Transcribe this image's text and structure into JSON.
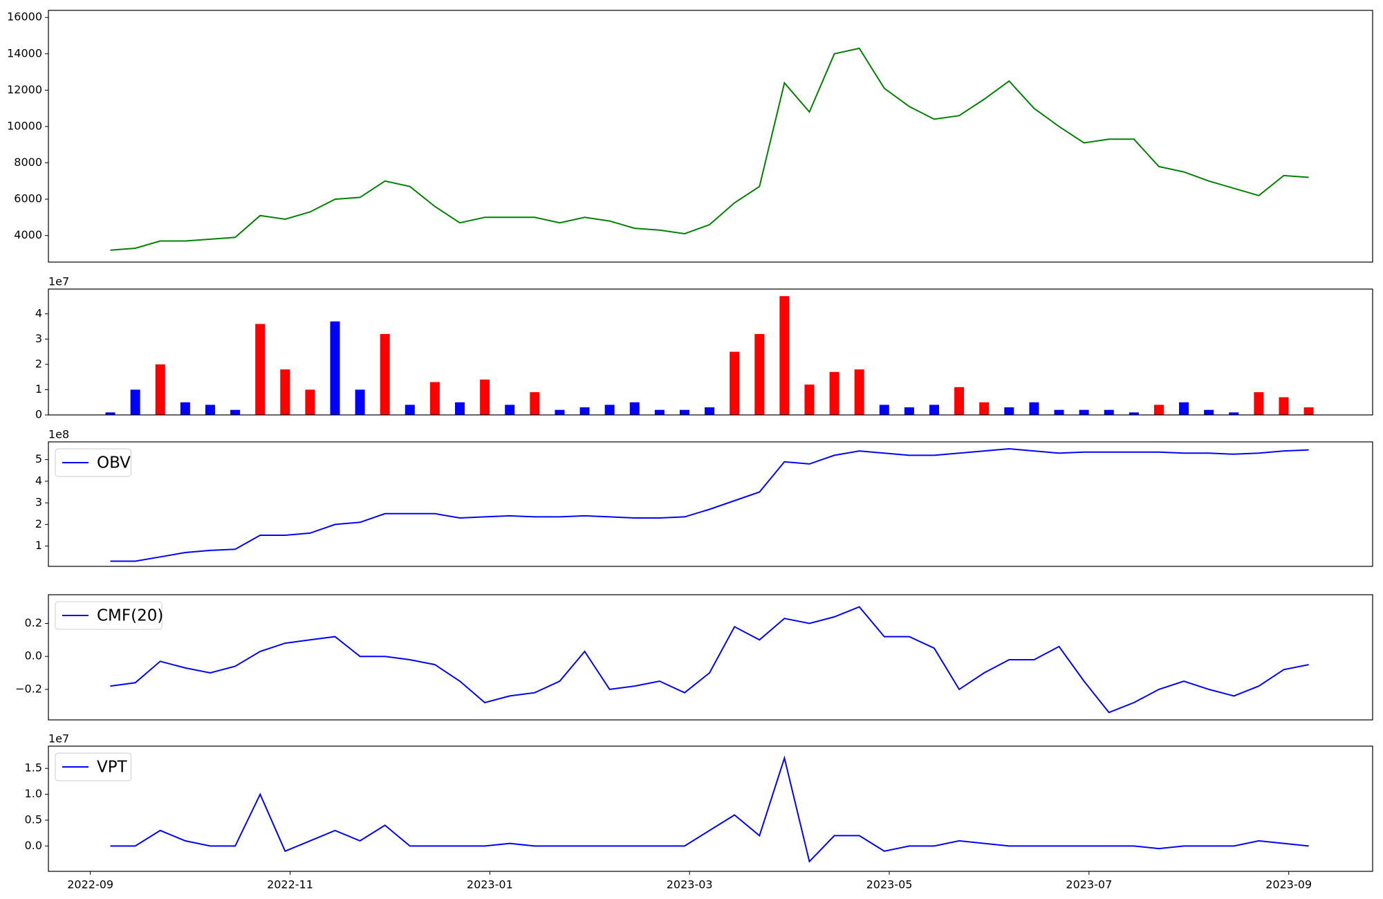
{
  "chart_data": [
    {
      "type": "line",
      "x": [
        0.2,
        0.45,
        0.7,
        0.95,
        1.2,
        1.45,
        1.7,
        1.95,
        2.2,
        2.45,
        2.7,
        2.95,
        3.2,
        3.45,
        3.7,
        3.95,
        4.2,
        4.45,
        4.7,
        4.95,
        5.2,
        5.45,
        5.7,
        5.95,
        6.2,
        6.45,
        6.7,
        6.95,
        7.2,
        7.45,
        7.7,
        7.95,
        8.2,
        8.45,
        8.7,
        8.95,
        9.2,
        9.45,
        9.7,
        9.95,
        10.2,
        10.45,
        10.7,
        10.95,
        11.2,
        11.45,
        11.7,
        11.95,
        12.2
      ],
      "xlim": [
        -0.42,
        12.84
      ],
      "ylim": [
        2540,
        16390
      ],
      "yticks": [
        4000,
        6000,
        8000,
        10000,
        12000,
        14000,
        16000
      ],
      "series": [
        {
          "color": "green",
          "values": [
            3200,
            3300,
            3700,
            3700,
            3800,
            3900,
            5100,
            4900,
            5300,
            6000,
            6100,
            7000,
            6700,
            5600,
            4700,
            5000,
            5000,
            5000,
            4700,
            5000,
            4800,
            4400,
            4300,
            4100,
            4600,
            5800,
            6700,
            12400,
            10800,
            14000,
            14300,
            12100,
            11100,
            10400,
            10600,
            11500,
            12500,
            11000,
            10000,
            9100,
            9300,
            9300,
            7800,
            7500,
            7000,
            6600,
            6200,
            7300,
            7200
          ]
        }
      ]
    },
    {
      "type": "bar",
      "x": [
        0.2,
        0.45,
        0.7,
        0.95,
        1.2,
        1.45,
        1.7,
        1.95,
        2.2,
        2.45,
        2.7,
        2.95,
        3.2,
        3.45,
        3.7,
        3.95,
        4.2,
        4.45,
        4.7,
        4.95,
        5.2,
        5.45,
        5.7,
        5.95,
        6.2,
        6.45,
        6.7,
        6.95,
        7.2,
        7.45,
        7.7,
        7.95,
        8.2,
        8.45,
        8.7,
        8.95,
        9.2,
        9.45,
        9.7,
        9.95,
        10.2,
        10.45,
        10.7,
        10.95,
        11.2,
        11.45,
        11.7,
        11.95,
        12.2
      ],
      "xlim": [
        -0.42,
        12.84
      ],
      "ylim": [
        0,
        4.98
      ],
      "yticks": [
        0,
        1,
        2,
        3,
        4
      ],
      "y_offset_label": "1e7",
      "values": [
        0.1,
        1.0,
        2.0,
        0.5,
        0.4,
        0.2,
        3.6,
        1.8,
        1.0,
        3.7,
        1.0,
        3.2,
        0.4,
        1.3,
        0.5,
        1.4,
        0.4,
        0.9,
        0.2,
        0.3,
        0.4,
        0.5,
        0.2,
        0.2,
        0.3,
        2.5,
        3.2,
        4.7,
        1.2,
        1.7,
        1.8,
        0.4,
        0.3,
        0.4,
        1.1,
        0.5,
        0.3,
        0.5,
        0.2,
        0.2,
        0.2,
        0.1,
        0.4,
        0.5,
        0.2,
        0.1,
        0.9,
        0.7,
        0.3
      ],
      "colors": [
        "blue",
        "blue",
        "red",
        "blue",
        "blue",
        "blue",
        "red",
        "red",
        "red",
        "blue",
        "blue",
        "red",
        "blue",
        "red",
        "blue",
        "red",
        "blue",
        "red",
        "blue",
        "blue",
        "blue",
        "blue",
        "blue",
        "blue",
        "blue",
        "red",
        "red",
        "red",
        "red",
        "red",
        "red",
        "blue",
        "blue",
        "blue",
        "red",
        "red",
        "blue",
        "blue",
        "blue",
        "blue",
        "blue",
        "blue",
        "red",
        "blue",
        "blue",
        "blue",
        "red",
        "red",
        "red"
      ]
    },
    {
      "type": "line",
      "x": [
        0.2,
        0.45,
        0.7,
        0.95,
        1.2,
        1.45,
        1.7,
        1.95,
        2.2,
        2.45,
        2.7,
        2.95,
        3.2,
        3.45,
        3.7,
        3.95,
        4.2,
        4.45,
        4.7,
        4.95,
        5.2,
        5.45,
        5.7,
        5.95,
        6.2,
        6.45,
        6.7,
        6.95,
        7.2,
        7.45,
        7.7,
        7.95,
        8.2,
        8.45,
        8.7,
        8.95,
        9.2,
        9.45,
        9.7,
        9.95,
        10.2,
        10.45,
        10.7,
        10.95,
        11.2,
        11.45,
        11.7,
        11.95,
        12.2
      ],
      "xlim": [
        -0.42,
        12.84
      ],
      "ylim": [
        0.06,
        5.82
      ],
      "yticks": [
        1,
        2,
        3,
        4,
        5
      ],
      "y_offset_label": "1e8",
      "legend": "upper left",
      "series": [
        {
          "name": "OBV",
          "color": "blue",
          "values": [
            0.3,
            0.3,
            0.5,
            0.7,
            0.8,
            0.85,
            1.5,
            1.5,
            1.6,
            2.0,
            2.1,
            2.5,
            2.5,
            2.5,
            2.3,
            2.35,
            2.4,
            2.35,
            2.35,
            2.4,
            2.35,
            2.3,
            2.3,
            2.35,
            2.7,
            3.1,
            3.5,
            4.9,
            4.8,
            5.2,
            5.4,
            5.3,
            5.2,
            5.2,
            5.3,
            5.4,
            5.5,
            5.4,
            5.3,
            5.35,
            5.35,
            5.35,
            5.35,
            5.3,
            5.3,
            5.25,
            5.3,
            5.4,
            5.45
          ]
        }
      ]
    },
    {
      "type": "line",
      "x": [
        0.2,
        0.45,
        0.7,
        0.95,
        1.2,
        1.45,
        1.7,
        1.95,
        2.2,
        2.45,
        2.7,
        2.95,
        3.2,
        3.45,
        3.7,
        3.95,
        4.2,
        4.45,
        4.7,
        4.95,
        5.2,
        5.45,
        5.7,
        5.95,
        6.2,
        6.45,
        6.7,
        6.95,
        7.2,
        7.45,
        7.7,
        7.95,
        8.2,
        8.45,
        8.7,
        8.95,
        9.2,
        9.45,
        9.7,
        9.95,
        10.2,
        10.45,
        10.7,
        10.95,
        11.2,
        11.45,
        11.7,
        11.95,
        12.2
      ],
      "xlim": [
        -0.42,
        12.84
      ],
      "ylim": [
        -0.385,
        0.374
      ],
      "yticks": [
        {
          "value": -0.2,
          "label": "−0.2"
        },
        {
          "value": 0,
          "label": "0.0"
        },
        {
          "value": 0.2,
          "label": "0.2"
        }
      ],
      "legend": "upper left",
      "series": [
        {
          "name": "CMF(20)",
          "color": "blue",
          "values": [
            -0.18,
            -0.16,
            -0.03,
            -0.07,
            -0.1,
            -0.06,
            0.03,
            0.08,
            0.1,
            0.12,
            0.0,
            0.0,
            -0.02,
            -0.05,
            -0.15,
            -0.28,
            -0.24,
            -0.22,
            -0.15,
            0.03,
            -0.2,
            -0.18,
            -0.15,
            -0.22,
            -0.1,
            0.18,
            0.1,
            0.23,
            0.2,
            0.24,
            0.3,
            0.12,
            0.12,
            0.05,
            -0.2,
            -0.1,
            -0.02,
            -0.02,
            0.06,
            -0.15,
            -0.34,
            -0.28,
            -0.2,
            -0.15,
            -0.2,
            -0.24,
            -0.18,
            -0.08,
            -0.05
          ]
        }
      ]
    },
    {
      "type": "line",
      "x": [
        0.2,
        0.45,
        0.7,
        0.95,
        1.2,
        1.45,
        1.7,
        1.95,
        2.2,
        2.45,
        2.7,
        2.95,
        3.2,
        3.45,
        3.7,
        3.95,
        4.2,
        4.45,
        4.7,
        4.95,
        5.2,
        5.45,
        5.7,
        5.95,
        6.2,
        6.45,
        6.7,
        6.95,
        7.2,
        7.45,
        7.7,
        7.95,
        8.2,
        8.45,
        8.7,
        8.95,
        9.2,
        9.45,
        9.7,
        9.95,
        10.2,
        10.45,
        10.7,
        10.95,
        11.2,
        11.45,
        11.7,
        11.95,
        12.2
      ],
      "xlim": [
        -0.42,
        12.84
      ],
      "ylim": [
        -0.49,
        1.93
      ],
      "yticks": [
        {
          "value": 0,
          "label": "0.0"
        },
        {
          "value": 0.5,
          "label": "0.5"
        },
        {
          "value": 1,
          "label": "1.0"
        },
        {
          "value": 1.5,
          "label": "1.5"
        }
      ],
      "y_offset_label": "1e7",
      "legend": "upper left",
      "xticks": [
        {
          "value": 0,
          "label": "2022-09"
        },
        {
          "value": 2,
          "label": "2022-11"
        },
        {
          "value": 4,
          "label": "2023-01"
        },
        {
          "value": 6,
          "label": "2023-03"
        },
        {
          "value": 8,
          "label": "2023-05"
        },
        {
          "value": 10,
          "label": "2023-07"
        },
        {
          "value": 12,
          "label": "2023-09"
        }
      ],
      "series": [
        {
          "name": "VPT",
          "color": "blue",
          "values": [
            0,
            0,
            0.3,
            0.1,
            0,
            0,
            1.0,
            -0.1,
            0.1,
            0.3,
            0.1,
            0.4,
            0,
            0,
            0,
            0,
            0.05,
            0,
            0,
            0,
            0,
            0,
            0,
            0,
            0.3,
            0.6,
            0.2,
            1.7,
            -0.3,
            0.2,
            0.2,
            -0.1,
            0,
            0,
            0.1,
            0.05,
            0,
            0,
            0,
            0,
            0,
            0,
            -0.05,
            0,
            0,
            0,
            0.1,
            0.05,
            0
          ]
        }
      ]
    }
  ]
}
